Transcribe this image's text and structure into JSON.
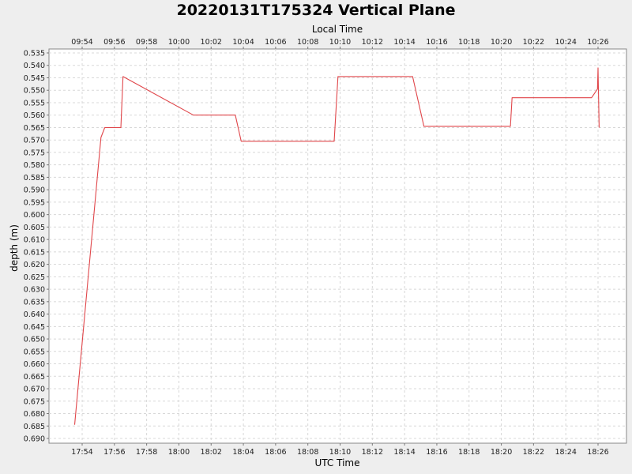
{
  "chart_data": {
    "type": "line",
    "title": "20220131T175324 Vertical Plane",
    "xlabel": "UTC Time",
    "x2label": "Local Time",
    "ylabel": "depth (m)",
    "y_inverted": true,
    "ylim": [
      0.535,
      0.69
    ],
    "y_ticks": [
      "0.535",
      "0.540",
      "0.545",
      "0.550",
      "0.555",
      "0.560",
      "0.565",
      "0.570",
      "0.575",
      "0.580",
      "0.585",
      "0.590",
      "0.595",
      "0.600",
      "0.605",
      "0.610",
      "0.615",
      "0.620",
      "0.625",
      "0.630",
      "0.635",
      "0.640",
      "0.645",
      "0.650",
      "0.655",
      "0.660",
      "0.665",
      "0.670",
      "0.675",
      "0.680",
      "0.685",
      "0.690"
    ],
    "x_ticks_utc": [
      "17:54",
      "17:56",
      "17:58",
      "18:00",
      "18:02",
      "18:04",
      "18:06",
      "18:08",
      "18:10",
      "18:12",
      "18:14",
      "18:16",
      "18:18",
      "18:20",
      "18:22",
      "18:24",
      "18:26"
    ],
    "x_ticks_local": [
      "09:54",
      "09:56",
      "09:58",
      "10:00",
      "10:02",
      "10:04",
      "10:06",
      "10:08",
      "10:10",
      "10:12",
      "10:14",
      "10:16",
      "10:18",
      "10:20",
      "10:22",
      "10:24",
      "10:26"
    ],
    "grid": true,
    "line_color": "#e0464a",
    "series": [
      {
        "x_utc": [
          "17:53:32",
          "17:55:10",
          "17:55:24",
          "17:56:24",
          "17:56:32",
          "18:00:54",
          "18:03:30",
          "18:03:52",
          "18:09:38",
          "18:09:52",
          "18:14:30",
          "18:15:12",
          "18:20:34",
          "18:20:40",
          "18:25:36",
          "18:25:58",
          "18:26:00",
          "18:26:04"
        ],
        "y": [
          0.6845,
          0.569,
          0.565,
          0.565,
          0.5445,
          0.56,
          0.56,
          0.5705,
          0.5705,
          0.5445,
          0.5445,
          0.5645,
          0.5645,
          0.553,
          0.553,
          0.5495,
          0.541,
          0.565
        ]
      }
    ]
  }
}
